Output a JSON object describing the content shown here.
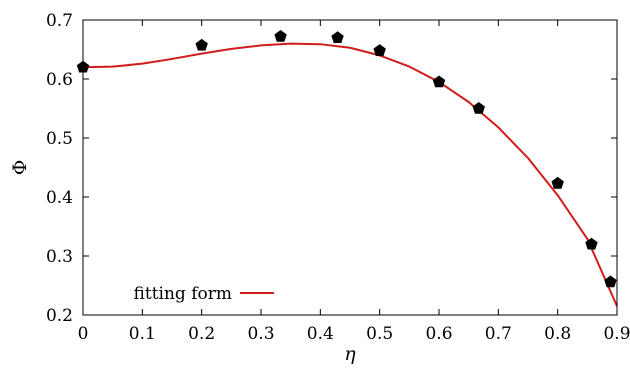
{
  "chart_data": {
    "type": "scatter",
    "xlabel": "η",
    "ylabel": "Φ",
    "xlim": [
      0,
      0.9
    ],
    "ylim": [
      0.2,
      0.7
    ],
    "x_ticks": [
      0,
      0.1,
      0.2,
      0.3,
      0.4,
      0.5,
      0.6,
      0.7,
      0.8,
      0.9
    ],
    "x_tick_labels": [
      "0",
      "0.1",
      "0.2",
      "0.3",
      "0.4",
      "0.5",
      "0.6",
      "0.7",
      "0.8",
      "0.9"
    ],
    "y_ticks": [
      0.2,
      0.3,
      0.4,
      0.5,
      0.6,
      0.7
    ],
    "y_tick_labels": [
      "0.2",
      "0.3",
      "0.4",
      "0.5",
      "0.6",
      "0.7"
    ],
    "grid": false,
    "legend_position": "bottom-left",
    "series": [
      {
        "kind": "markers",
        "marker": "pentagon",
        "color": "#000000",
        "x": [
          0.0,
          0.2,
          0.333,
          0.429,
          0.5,
          0.6,
          0.667,
          0.8,
          0.857,
          0.889
        ],
        "y": [
          0.62,
          0.657,
          0.672,
          0.67,
          0.648,
          0.595,
          0.55,
          0.423,
          0.32,
          0.256
        ]
      },
      {
        "kind": "line",
        "name": "fitting form",
        "color": "#d01c1c",
        "x": [
          0.0,
          0.05,
          0.1,
          0.15,
          0.2,
          0.25,
          0.3,
          0.35,
          0.4,
          0.45,
          0.5,
          0.55,
          0.6,
          0.65,
          0.7,
          0.75,
          0.8,
          0.85,
          0.9
        ],
        "y": [
          0.62,
          0.621,
          0.626,
          0.634,
          0.643,
          0.651,
          0.657,
          0.66,
          0.659,
          0.653,
          0.64,
          0.621,
          0.595,
          0.561,
          0.518,
          0.466,
          0.403,
          0.329,
          0.215
        ]
      }
    ]
  }
}
